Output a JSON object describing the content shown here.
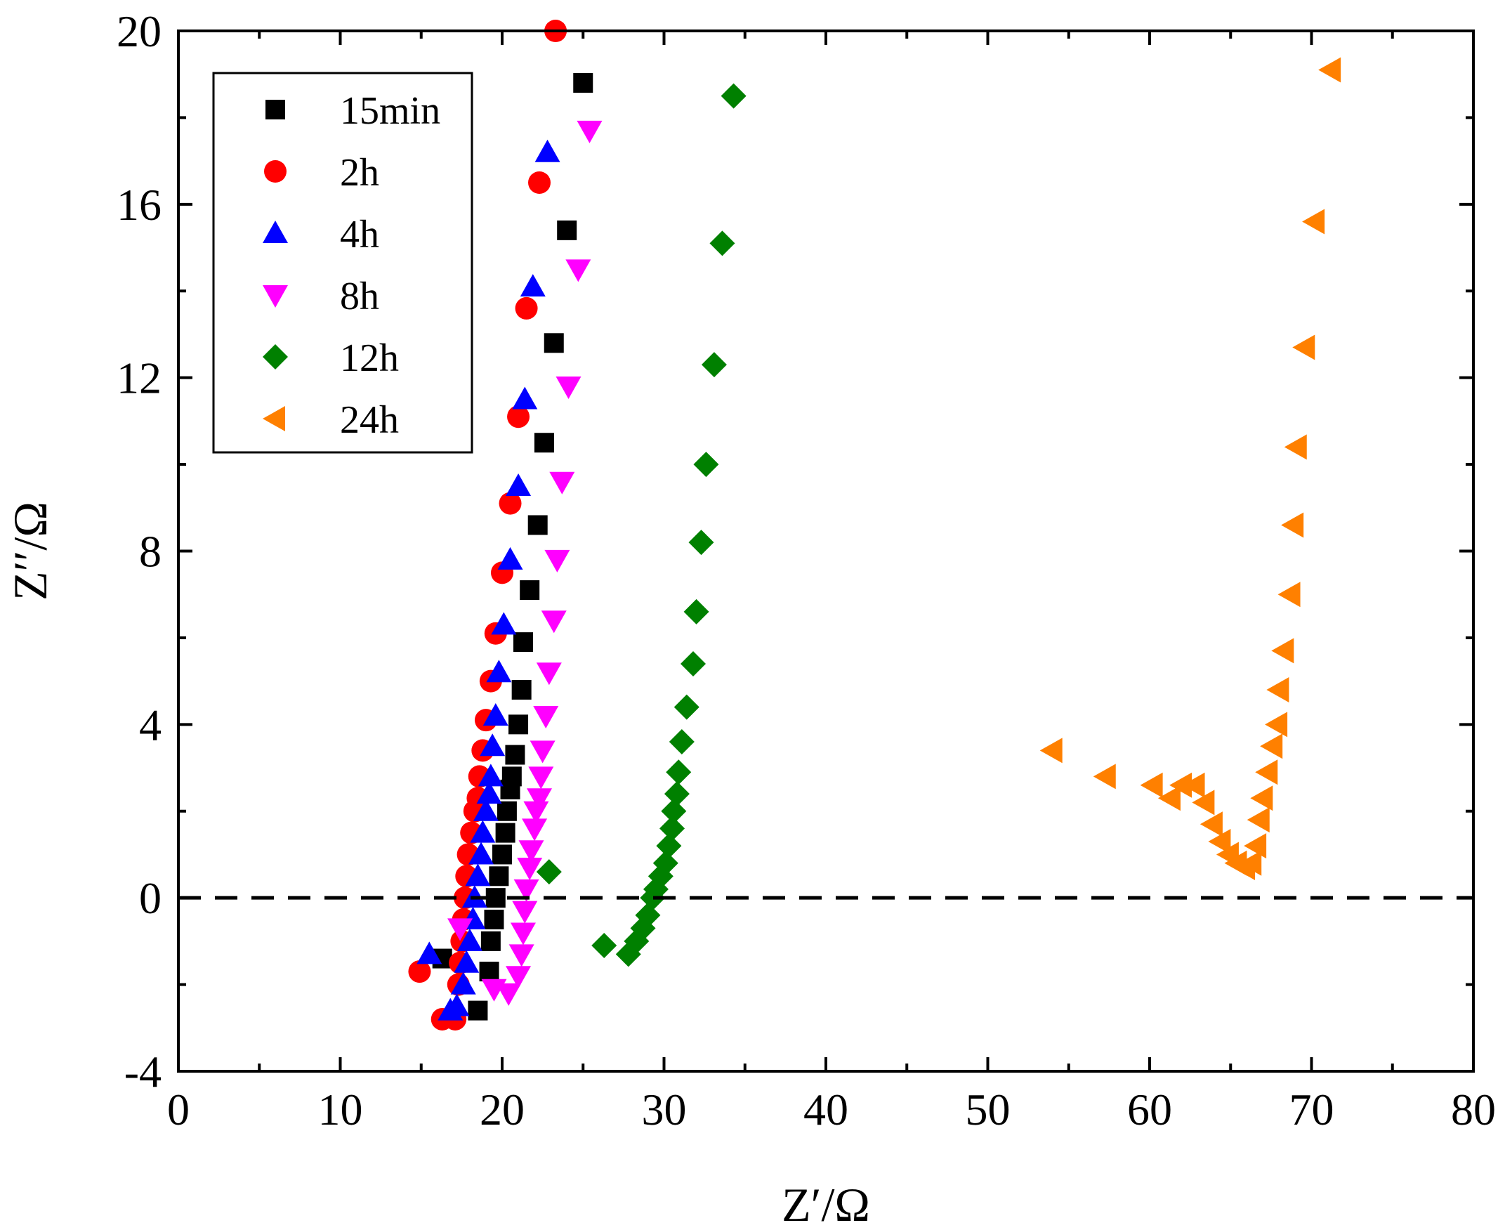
{
  "chart_data": {
    "type": "scatter",
    "xlabel": "Z′/Ω",
    "ylabel": "Z′′/Ω",
    "xlim": [
      0,
      80
    ],
    "ylim": [
      -4,
      20
    ],
    "xticks": [
      0,
      10,
      20,
      30,
      40,
      50,
      60,
      70,
      80
    ],
    "yticks": [
      -4,
      0,
      4,
      8,
      12,
      16,
      20
    ],
    "x_tick_labels": [
      "0",
      "10",
      "20",
      "30",
      "40",
      "50",
      "60",
      "70",
      "80"
    ],
    "y_tick_labels": [
      "-4",
      "0",
      "4",
      "8",
      "12",
      "16",
      "20"
    ],
    "reference_line": {
      "y": 0,
      "style": "dashed"
    },
    "grid": false,
    "legend_position": "top-left",
    "series": [
      {
        "name": "15min",
        "marker": "square",
        "color": "#000000",
        "points": [
          [
            16.3,
            -1.4
          ],
          [
            18.5,
            -2.6
          ],
          [
            19.2,
            -1.7
          ],
          [
            19.3,
            -1.0
          ],
          [
            19.5,
            -0.5
          ],
          [
            19.6,
            0.0
          ],
          [
            19.8,
            0.5
          ],
          [
            20.0,
            1.0
          ],
          [
            20.2,
            1.5
          ],
          [
            20.3,
            2.0
          ],
          [
            20.5,
            2.5
          ],
          [
            20.6,
            2.8
          ],
          [
            20.8,
            3.3
          ],
          [
            21.0,
            4.0
          ],
          [
            21.2,
            4.8
          ],
          [
            21.3,
            5.9
          ],
          [
            21.7,
            7.1
          ],
          [
            22.2,
            8.6
          ],
          [
            22.6,
            10.5
          ],
          [
            23.2,
            12.8
          ],
          [
            24.0,
            15.4
          ],
          [
            25.0,
            18.8
          ]
        ]
      },
      {
        "name": "2h",
        "marker": "circle",
        "color": "#ff0000",
        "points": [
          [
            14.9,
            -1.7
          ],
          [
            16.3,
            -2.8
          ],
          [
            17.1,
            -2.8
          ],
          [
            17.3,
            -2.0
          ],
          [
            17.4,
            -1.5
          ],
          [
            17.5,
            -1.0
          ],
          [
            17.6,
            -0.5
          ],
          [
            17.7,
            0.0
          ],
          [
            17.8,
            0.5
          ],
          [
            17.9,
            1.0
          ],
          [
            18.1,
            1.5
          ],
          [
            18.3,
            2.0
          ],
          [
            18.5,
            2.3
          ],
          [
            18.6,
            2.8
          ],
          [
            18.8,
            3.4
          ],
          [
            19.0,
            4.1
          ],
          [
            19.3,
            5.0
          ],
          [
            19.6,
            6.1
          ],
          [
            20.0,
            7.5
          ],
          [
            20.5,
            9.1
          ],
          [
            21.0,
            11.1
          ],
          [
            21.5,
            13.6
          ],
          [
            22.3,
            16.5
          ],
          [
            23.3,
            20.0
          ]
        ]
      },
      {
        "name": "4h",
        "marker": "triangle-up",
        "color": "#0000ff",
        "points": [
          [
            15.5,
            -1.3
          ],
          [
            16.8,
            -2.6
          ],
          [
            17.2,
            -2.5
          ],
          [
            17.6,
            -2.0
          ],
          [
            17.8,
            -1.5
          ],
          [
            18.0,
            -1.0
          ],
          [
            18.2,
            -0.5
          ],
          [
            18.3,
            0.0
          ],
          [
            18.5,
            0.5
          ],
          [
            18.7,
            1.0
          ],
          [
            18.8,
            1.5
          ],
          [
            19.0,
            2.0
          ],
          [
            19.2,
            2.4
          ],
          [
            19.3,
            2.8
          ],
          [
            19.4,
            3.5
          ],
          [
            19.6,
            4.2
          ],
          [
            19.8,
            5.2
          ],
          [
            20.1,
            6.3
          ],
          [
            20.5,
            7.8
          ],
          [
            21.0,
            9.5
          ],
          [
            21.4,
            11.5
          ],
          [
            21.9,
            14.1
          ],
          [
            22.8,
            17.2
          ]
        ]
      },
      {
        "name": "8h",
        "marker": "triangle-down",
        "color": "#ff00ff",
        "points": [
          [
            17.4,
            -0.7
          ],
          [
            19.5,
            -2.1
          ],
          [
            20.4,
            -2.2
          ],
          [
            21.0,
            -1.8
          ],
          [
            21.2,
            -1.3
          ],
          [
            21.3,
            -0.8
          ],
          [
            21.4,
            -0.3
          ],
          [
            21.5,
            0.2
          ],
          [
            21.7,
            0.7
          ],
          [
            21.8,
            1.1
          ],
          [
            22.0,
            1.6
          ],
          [
            22.1,
            2.0
          ],
          [
            22.3,
            2.3
          ],
          [
            22.4,
            2.8
          ],
          [
            22.5,
            3.4
          ],
          [
            22.7,
            4.2
          ],
          [
            22.9,
            5.2
          ],
          [
            23.2,
            6.4
          ],
          [
            23.4,
            7.8
          ],
          [
            23.7,
            9.6
          ],
          [
            24.1,
            11.8
          ],
          [
            24.7,
            14.5
          ],
          [
            25.4,
            17.7
          ]
        ]
      },
      {
        "name": "12h",
        "marker": "diamond",
        "color": "#008000",
        "points": [
          [
            22.9,
            0.6
          ],
          [
            26.3,
            -1.1
          ],
          [
            27.8,
            -1.3
          ],
          [
            28.3,
            -1.0
          ],
          [
            28.7,
            -0.7
          ],
          [
            29.0,
            -0.4
          ],
          [
            29.3,
            0.0
          ],
          [
            29.5,
            0.2
          ],
          [
            29.8,
            0.5
          ],
          [
            30.1,
            0.8
          ],
          [
            30.3,
            1.2
          ],
          [
            30.5,
            1.6
          ],
          [
            30.6,
            2.0
          ],
          [
            30.8,
            2.4
          ],
          [
            30.9,
            2.9
          ],
          [
            31.1,
            3.6
          ],
          [
            31.4,
            4.4
          ],
          [
            31.8,
            5.4
          ],
          [
            32.0,
            6.6
          ],
          [
            32.3,
            8.2
          ],
          [
            32.6,
            10.0
          ],
          [
            33.1,
            12.3
          ],
          [
            33.6,
            15.1
          ],
          [
            34.3,
            18.5
          ]
        ]
      },
      {
        "name": "24h",
        "marker": "triangle-left",
        "color": "#ff8000",
        "points": [
          [
            54.0,
            3.4
          ],
          [
            57.3,
            2.8
          ],
          [
            60.2,
            2.6
          ],
          [
            61.3,
            2.3
          ],
          [
            62.0,
            2.6
          ],
          [
            62.8,
            2.6
          ],
          [
            63.4,
            2.2
          ],
          [
            63.9,
            1.7
          ],
          [
            64.4,
            1.3
          ],
          [
            64.9,
            1.0
          ],
          [
            65.4,
            0.8
          ],
          [
            65.9,
            0.7
          ],
          [
            66.3,
            0.8
          ],
          [
            66.6,
            1.2
          ],
          [
            66.8,
            1.8
          ],
          [
            67.0,
            2.3
          ],
          [
            67.3,
            2.9
          ],
          [
            67.6,
            3.5
          ],
          [
            67.9,
            4.0
          ],
          [
            68.0,
            4.8
          ],
          [
            68.3,
            5.7
          ],
          [
            68.7,
            7.0
          ],
          [
            68.9,
            8.6
          ],
          [
            69.1,
            10.4
          ],
          [
            69.6,
            12.7
          ],
          [
            70.2,
            15.6
          ],
          [
            71.2,
            19.1
          ]
        ]
      }
    ]
  }
}
